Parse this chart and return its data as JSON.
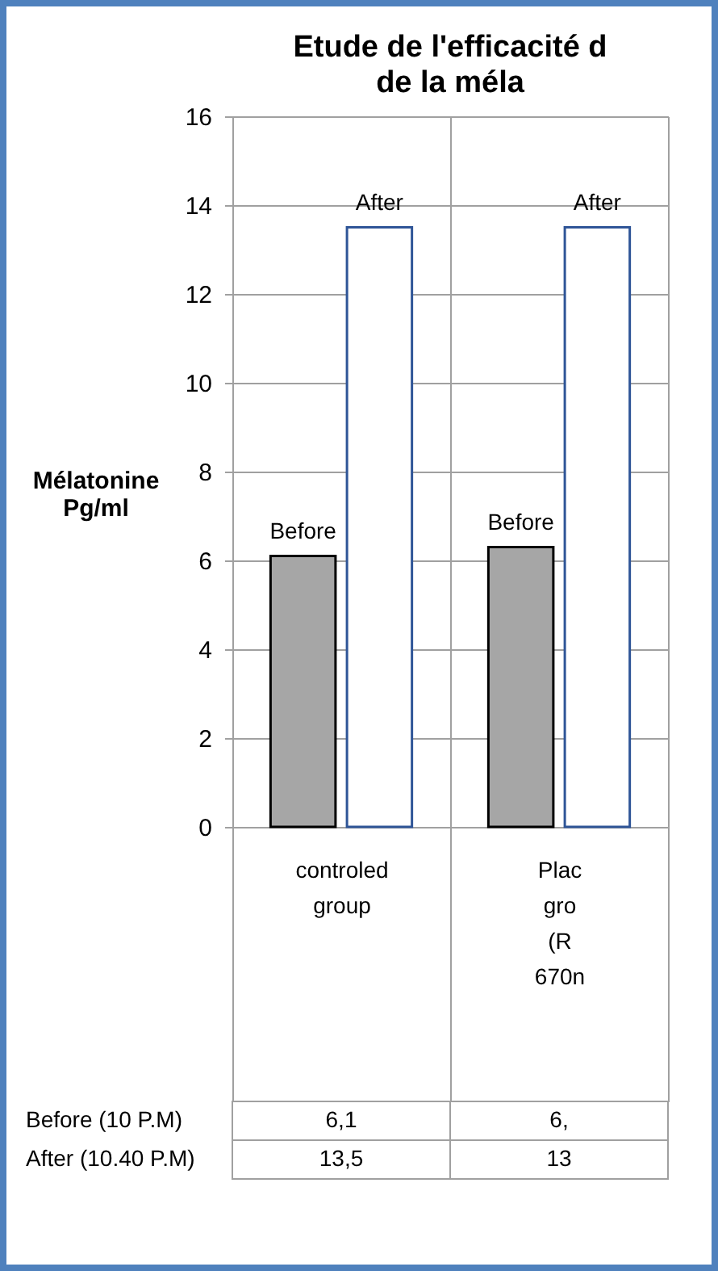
{
  "chart_data": {
    "type": "bar",
    "title": "Etude de l'efficacité d",
    "subtitle": "de la méla",
    "ylabel": "Mélatonine Pg/ml",
    "categories": [
      "controled group",
      "Plac gro (R 670n"
    ],
    "series": [
      {
        "name": "Before",
        "color": "#a6a6a6",
        "values": [
          6.1,
          6.3
        ],
        "value_labels": [
          "6,1",
          "6,"
        ]
      },
      {
        "name": "After",
        "color": "#ffffff",
        "values": [
          13.5,
          13.5
        ],
        "value_labels": [
          "13,5",
          "13"
        ]
      }
    ],
    "annotations": [
      "Before (10 P.M)",
      "After (10.40 P.M)"
    ],
    "ylim": [
      0,
      16
    ],
    "yticks": [
      0,
      2,
      4,
      6,
      8,
      10,
      12,
      14,
      16
    ],
    "grid": "y",
    "data_labels": true
  }
}
